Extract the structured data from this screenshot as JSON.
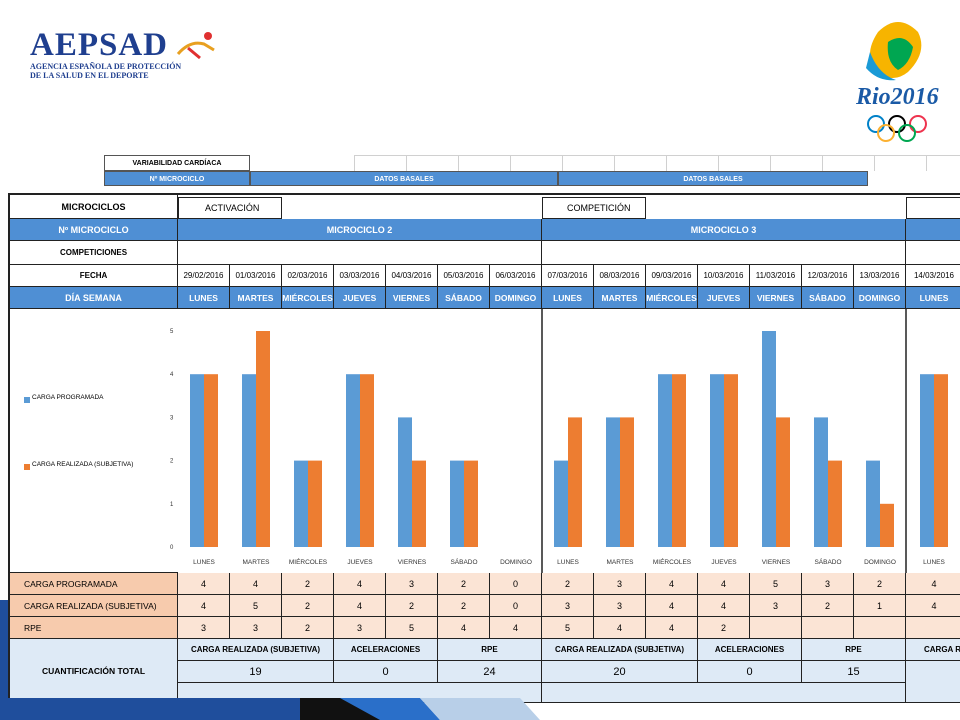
{
  "header": {
    "logo_left_main": "AEPSAD",
    "logo_left_sub1": "AGENCIA ESPAÑOLA DE PROTECCIÓN",
    "logo_left_sub2": "DE LA SALUD EN EL DEPORTE",
    "logo_right_text": "Rio2016"
  },
  "bg_sheet": {
    "title": "VARIABILIDAD CARDÍACA",
    "microciclo": "Nº MICROCICLO",
    "datos1": "DATOS BASALES",
    "datos2": "DATOS BASALES"
  },
  "sheet": {
    "microciclos_label": "MICROCICLOS",
    "activation": "ACTIVACIÓN",
    "competition": "COMPETICIÓN",
    "n_microciclo_label": "Nº MICROCICLO",
    "microciclo2": "MICROCICLO 2",
    "microciclo3": "MICROCICLO 3",
    "competiciones_label": "COMPETICIONES",
    "fecha_label": "FECHA",
    "dia_semana_label": "DÍA SEMANA",
    "dates": [
      "29/02/2016",
      "01/03/2016",
      "02/03/2016",
      "03/03/2016",
      "04/03/2016",
      "05/03/2016",
      "06/03/2016",
      "07/03/2016",
      "08/03/2016",
      "09/03/2016",
      "10/03/2016",
      "11/03/2016",
      "12/03/2016",
      "13/03/2016",
      "14/03/2016"
    ],
    "days": [
      "LUNES",
      "MARTES",
      "MIÉRCOLES",
      "JUEVES",
      "VIERNES",
      "SÁBADO",
      "DOMINGO",
      "LUNES",
      "MARTES",
      "MIÉRCOLES",
      "JUEVES",
      "VIERNES",
      "SÁBADO",
      "DOMINGO",
      "LUNES"
    ],
    "chart_days": [
      "LUNES",
      "MARTES",
      "MIÉRCOLES",
      "JUEVES",
      "VIERNES",
      "SÁBADO",
      "DOMINGO",
      "LUNES",
      "MARTES",
      "MIÉRCOLES",
      "JUEVES",
      "VIERNES",
      "SÁBADO",
      "DOMINGO",
      "LUNES"
    ],
    "legend_programada": "CARGA PROGRAMADA",
    "legend_realizada": "CARGA REALIZADA (SUBJETIVA)",
    "carga_programada_label": "CARGA PROGRAMADA",
    "carga_realizada_label": "CARGA REALIZADA (SUBJETIVA)",
    "rpe_label": "RPE",
    "carga_programada": [
      "4",
      "4",
      "2",
      "4",
      "3",
      "2",
      "0",
      "2",
      "3",
      "4",
      "4",
      "5",
      "3",
      "2",
      "4"
    ],
    "carga_realizada": [
      "4",
      "5",
      "2",
      "4",
      "2",
      "2",
      "0",
      "3",
      "3",
      "4",
      "4",
      "3",
      "2",
      "1",
      "4"
    ],
    "rpe": [
      "3",
      "3",
      "2",
      "3",
      "5",
      "4",
      "4",
      "5",
      "4",
      "4",
      "2",
      "",
      "",
      "",
      ""
    ],
    "cuantificacion_label": "CUANTIFICACIÓN TOTAL",
    "q_headers_m2": [
      "CARGA REALIZADA (SUBJETIVA)",
      "ACELERACIONES",
      "RPE"
    ],
    "q_values_m2": [
      "19",
      "0",
      "24"
    ],
    "q_headers_m3": [
      "CARGA REALIZADA (SUBJETIVA)",
      "ACELERACIONES",
      "RPE"
    ],
    "q_values_m3": [
      "20",
      "0",
      "15"
    ],
    "q_header_m4_partial": "CARGA RE"
  },
  "chart_data": {
    "type": "bar",
    "categories": [
      "LUNES",
      "MARTES",
      "MIÉRCOLES",
      "JUEVES",
      "VIERNES",
      "SÁBADO",
      "DOMINGO",
      "LUNES",
      "MARTES",
      "MIÉRCOLES",
      "JUEVES",
      "VIERNES",
      "SÁBADO",
      "DOMINGO",
      "LUNES"
    ],
    "series": [
      {
        "name": "CARGA PROGRAMADA",
        "color": "#5b9bd5",
        "values": [
          4,
          4,
          2,
          4,
          3,
          2,
          0,
          2,
          3,
          4,
          4,
          5,
          3,
          2,
          4
        ]
      },
      {
        "name": "CARGA REALIZADA (SUBJETIVA)",
        "color": "#ed7d31",
        "values": [
          4,
          5,
          2,
          4,
          2,
          2,
          0,
          3,
          3,
          4,
          4,
          3,
          2,
          1,
          4
        ]
      }
    ],
    "yticks": [
      "0",
      "1",
      "2",
      "3",
      "4",
      "5"
    ],
    "ylim": [
      0,
      5
    ],
    "grid": false
  },
  "colors": {
    "header_blue": "#4f8fd4",
    "orange_label": "#f7cbad",
    "orange_row": "#fbe4d5",
    "light_blue": "#deeaf6",
    "bar_blue": "#5b9bd5",
    "bar_orange": "#ed7d31"
  }
}
